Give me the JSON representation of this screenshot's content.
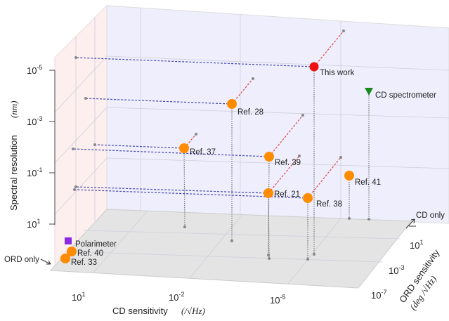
{
  "chart_data": {
    "type": "scatter3d",
    "x_axis": {
      "label": "CD sensitivity",
      "unit": "(/√Hz)",
      "scale": "log",
      "ticks": [
        "10^1",
        "10^-2",
        "10^-5"
      ]
    },
    "y_axis": {
      "label": "ORD sensitivity",
      "unit": "(deg /√Hz)",
      "scale": "log",
      "ticks": [
        "10^-7",
        "10^-3",
        "10^1"
      ],
      "end_label": "CD only"
    },
    "z_axis": {
      "label": "Spectral resolution",
      "unit": "(nm)",
      "scale": "log",
      "ticks": [
        "10^1",
        "10^-1",
        "10^-3",
        "10^-5"
      ]
    },
    "corner_label": "ORD only",
    "grid": true,
    "colors": {
      "this_work": "#ee1111",
      "refs": "#ff8c00",
      "cd_spectrometer": "#1a8a1a",
      "polarimeter": "#8a2be2",
      "back_wall": "#eeeefc",
      "left_wall": "#fcefee",
      "floor": "#e4e4e4"
    },
    "points": [
      {
        "label": "This work",
        "marker": "circle",
        "color": "#ee1111",
        "cd": 1e-06,
        "ord": 1e-07,
        "resolution": 1e-05
      },
      {
        "label": "Ref. 28",
        "marker": "circle",
        "color": "#ff8c00",
        "cd": 0.001,
        "ord": 0.0001,
        "resolution": 0.0001
      },
      {
        "label": "Ref. 37",
        "marker": "circle",
        "color": "#ff8c00",
        "cd": 0.01,
        "ord": 0.01,
        "resolution": 0.01
      },
      {
        "label": "Ref. 39",
        "marker": "circle",
        "color": "#ff8c00",
        "cd": 1e-05,
        "ord": 1e-06,
        "resolution": 0.01
      },
      {
        "label": "Ref. 21",
        "marker": "circle",
        "color": "#ff8c00",
        "cd": 1e-05,
        "ord": 1e-06,
        "resolution": 0.1
      },
      {
        "label": "Ref. 38",
        "marker": "circle",
        "color": "#ff8c00",
        "cd": 1e-06,
        "ord": 1e-07,
        "resolution": 0.1
      },
      {
        "label": "Ref. 41",
        "marker": "circle",
        "color": "#ff8c00",
        "cd": 1e-06,
        "ord": "CD only",
        "resolution": 0.1
      },
      {
        "label": "CD spectrometer",
        "marker": "triangle-down",
        "color": "#1a8a1a",
        "cd": 1e-07,
        "ord": "CD only",
        "resolution": 0.001
      },
      {
        "label": "Polarimeter",
        "marker": "square",
        "color": "#8a2be2",
        "cd": "ORD only",
        "ord": 1.0,
        "resolution": null
      },
      {
        "label": "Ref. 40",
        "marker": "circle",
        "color": "#ff8c00",
        "cd": "ORD only",
        "ord": 0.1,
        "resolution": null
      },
      {
        "label": "Ref. 33",
        "marker": "circle",
        "color": "#ff8c00",
        "cd": "ORD only",
        "ord": 0.01,
        "resolution": null
      }
    ]
  }
}
